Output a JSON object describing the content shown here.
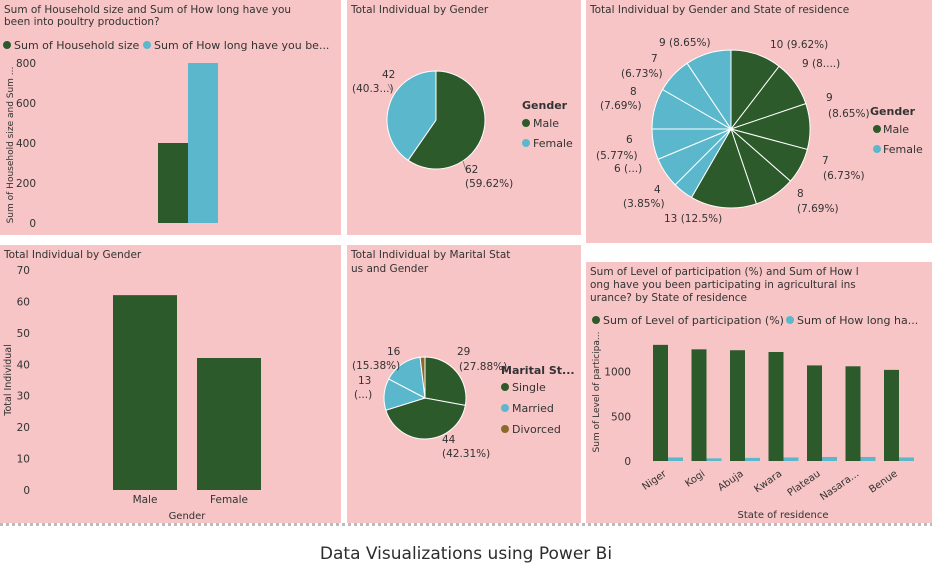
{
  "caption": "Data Visualizations using Power Bi",
  "colors": {
    "green": "#2d5a2a",
    "blue": "#5bb8cc",
    "brown": "#8a6a2a",
    "tile": "#f7c5c6",
    "text": "#333333"
  },
  "chart_data": [
    {
      "id": "c1",
      "type": "bar",
      "title": "Sum of Household size and Sum of How long have you been into poultry production?",
      "legend": [
        {
          "name": "Sum of Household size",
          "color": "#2d5a2a"
        },
        {
          "name": "Sum of How long have you be...",
          "color": "#5bb8cc"
        }
      ],
      "ylabel": "Sum of Household size and Sum ...",
      "yticks": [
        "0",
        "200",
        "400",
        "600",
        "800"
      ],
      "ylim": [
        0,
        800
      ],
      "series": [
        {
          "name": "Sum of Household size",
          "values": [
            400
          ]
        },
        {
          "name": "Sum of How long have you be...",
          "values": [
            800
          ]
        }
      ]
    },
    {
      "id": "c2",
      "type": "pie",
      "title": "Total Individual by Gender",
      "legend_title": "Gender",
      "slices": [
        {
          "name": "Male",
          "value": 62,
          "color": "#2d5a2a",
          "label": [
            "62",
            "(59.62%)"
          ]
        },
        {
          "name": "Female",
          "value": 42,
          "color": "#5bb8cc",
          "label": [
            "42",
            "(40.3...)"
          ]
        }
      ]
    },
    {
      "id": "c3",
      "type": "pie",
      "title": "Total Individual by Gender and State of residence",
      "legend_title": "Gender",
      "legend": [
        {
          "name": "Male",
          "color": "#2d5a2a"
        },
        {
          "name": "Female",
          "color": "#5bb8cc"
        }
      ],
      "slices": [
        {
          "gender": "Male",
          "value": 10,
          "label": [
            "10 (9.62%)"
          ]
        },
        {
          "gender": "Male",
          "value": 9,
          "label": [
            "9 (8....)"
          ]
        },
        {
          "gender": "Male",
          "value": 9,
          "label": [
            "9",
            "(8.65%)"
          ]
        },
        {
          "gender": "Male",
          "value": 7,
          "label": [
            "7",
            "(6.73%)"
          ]
        },
        {
          "gender": "Male",
          "value": 8,
          "label": [
            "8",
            "(7.69%)"
          ]
        },
        {
          "gender": "Male",
          "value": 13,
          "label": [
            "13 (12.5%)"
          ]
        },
        {
          "gender": "Female",
          "value": 4,
          "label": [
            "4",
            "(3.85%)"
          ]
        },
        {
          "gender": "Female",
          "value": 6,
          "label": [
            "6 (...)"
          ]
        },
        {
          "gender": "Female",
          "value": 6,
          "label": [
            "6",
            "(5.77%)"
          ]
        },
        {
          "gender": "Female",
          "value": 8,
          "label": [
            "8",
            "(7.69%)"
          ]
        },
        {
          "gender": "Female",
          "value": 7,
          "label": [
            "7",
            "(6.73%)"
          ]
        },
        {
          "gender": "Female",
          "value": 9,
          "label": [
            "9 (8.65%)"
          ]
        }
      ]
    },
    {
      "id": "c4",
      "type": "bar",
      "title": "Total Individual by Gender",
      "xlabel": "Gender",
      "ylabel": "Total Individual",
      "categories": [
        "Male",
        "Female"
      ],
      "values": [
        62,
        42
      ],
      "yticks": [
        "0",
        "10",
        "20",
        "30",
        "40",
        "50",
        "60",
        "70"
      ],
      "ylim": [
        0,
        70
      ]
    },
    {
      "id": "c5",
      "type": "pie",
      "title": "Total Individual by Marital Status and Gender",
      "legend_title": "Marital St...",
      "legend": [
        {
          "name": "Single",
          "color": "#2d5a2a"
        },
        {
          "name": "Married",
          "color": "#5bb8cc"
        },
        {
          "name": "Divorced",
          "color": "#8a6a2a"
        }
      ],
      "slices": [
        {
          "status": "Single",
          "value": 29,
          "label": [
            "29",
            "(27.88%)"
          ]
        },
        {
          "status": "Single",
          "value": 44,
          "label": [
            "44",
            "(42.31%)"
          ]
        },
        {
          "status": "Married",
          "value": 13,
          "label": [
            "13",
            "(...)"
          ]
        },
        {
          "status": "Married",
          "value": 16,
          "label": [
            "16",
            "(15.38%)"
          ]
        },
        {
          "status": "Divorced",
          "value": 2,
          "label": []
        }
      ]
    },
    {
      "id": "c6",
      "type": "bar",
      "title": "Sum of Level of participation (%) and Sum of How long have you been participating in agricultural insurance? by State of residence",
      "legend": [
        {
          "name": "Sum of Level of participation (%)",
          "color": "#2d5a2a"
        },
        {
          "name": "Sum of How long ha...",
          "color": "#5bb8cc"
        }
      ],
      "xlabel": "State of residence",
      "ylabel": "Sum of Level of participa...",
      "categories": [
        "Niger",
        "Kogi",
        "Abuja",
        "Kwara",
        "Plateau",
        "Nasara...",
        "Benue"
      ],
      "series": [
        {
          "name": "Sum of Level of participation (%)",
          "values": [
            1300,
            1250,
            1240,
            1220,
            1070,
            1060,
            1020
          ]
        },
        {
          "name": "Sum of How long ha...",
          "values": [
            40,
            30,
            35,
            40,
            45,
            45,
            40
          ]
        }
      ],
      "yticks": [
        "0",
        "500",
        "1000"
      ],
      "ylim": [
        0,
        1500
      ]
    }
  ]
}
